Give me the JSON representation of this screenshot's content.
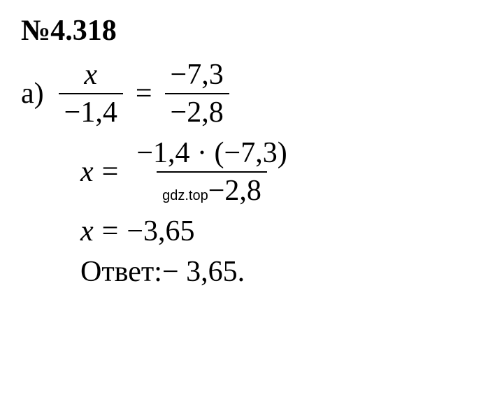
{
  "problem": {
    "number": "№4.318",
    "part_label": "а)",
    "line1": {
      "frac1_num": "x",
      "frac1_denom": "−1,4",
      "equals": "=",
      "frac2_num": "−7,3",
      "frac2_denom": "−2,8"
    },
    "line2": {
      "lhs": "x",
      "equals": "=",
      "frac_num": "−1,4 · (−7,3)",
      "watermark": "gdz.top",
      "frac_denom_tail": "−2,8"
    },
    "line3": {
      "lhs": "x",
      "equals": "=",
      "rhs": "−3,65"
    },
    "answer": {
      "label": "Ответ:",
      "value": " − 3,65."
    }
  },
  "styling": {
    "font_family": "Times New Roman",
    "font_size_main": 42,
    "font_size_watermark": 20,
    "text_color": "#000000",
    "background_color": "#ffffff",
    "fraction_bar_width": 2.5
  }
}
